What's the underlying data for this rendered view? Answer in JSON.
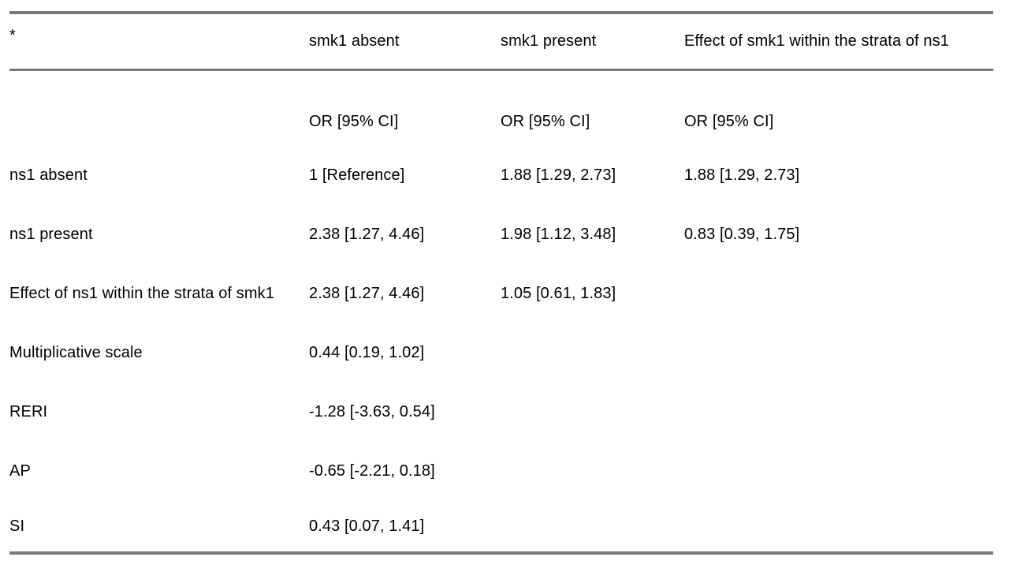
{
  "table": {
    "border_color": "#7a7a7a",
    "text_color": "#000000",
    "header": {
      "col0": "*",
      "col1": "smk1 absent",
      "col2": "smk1 present",
      "col3": "Effect of smk1 within the strata of ns1"
    },
    "subheader": {
      "col0": "",
      "col1": "OR [95% CI]",
      "col2": "OR [95% CI]",
      "col3": "OR [95% CI]"
    },
    "rows": [
      {
        "label": "ns1 absent",
        "c1": "1 [Reference]",
        "c2": "1.88 [1.29, 2.73]",
        "c3": "1.88 [1.29, 2.73]"
      },
      {
        "label": "ns1 present",
        "c1": "2.38 [1.27, 4.46]",
        "c2": "1.98 [1.12, 3.48]",
        "c3": "0.83 [0.39, 1.75]"
      },
      {
        "label": "Effect of ns1 within the strata of smk1",
        "c1": "2.38 [1.27, 4.46]",
        "c2": "1.05 [0.61, 1.83]",
        "c3": ""
      },
      {
        "label": "Multiplicative scale",
        "c1": "0.44 [0.19, 1.02]",
        "c2": "",
        "c3": ""
      },
      {
        "label": "RERI",
        "c1": "-1.28 [-3.63, 0.54]",
        "c2": "",
        "c3": ""
      },
      {
        "label": "AP",
        "c1": "-0.65 [-2.21, 0.18]",
        "c2": "",
        "c3": ""
      },
      {
        "label": "SI",
        "c1": "0.43 [0.07, 1.41]",
        "c2": "",
        "c3": ""
      }
    ]
  }
}
